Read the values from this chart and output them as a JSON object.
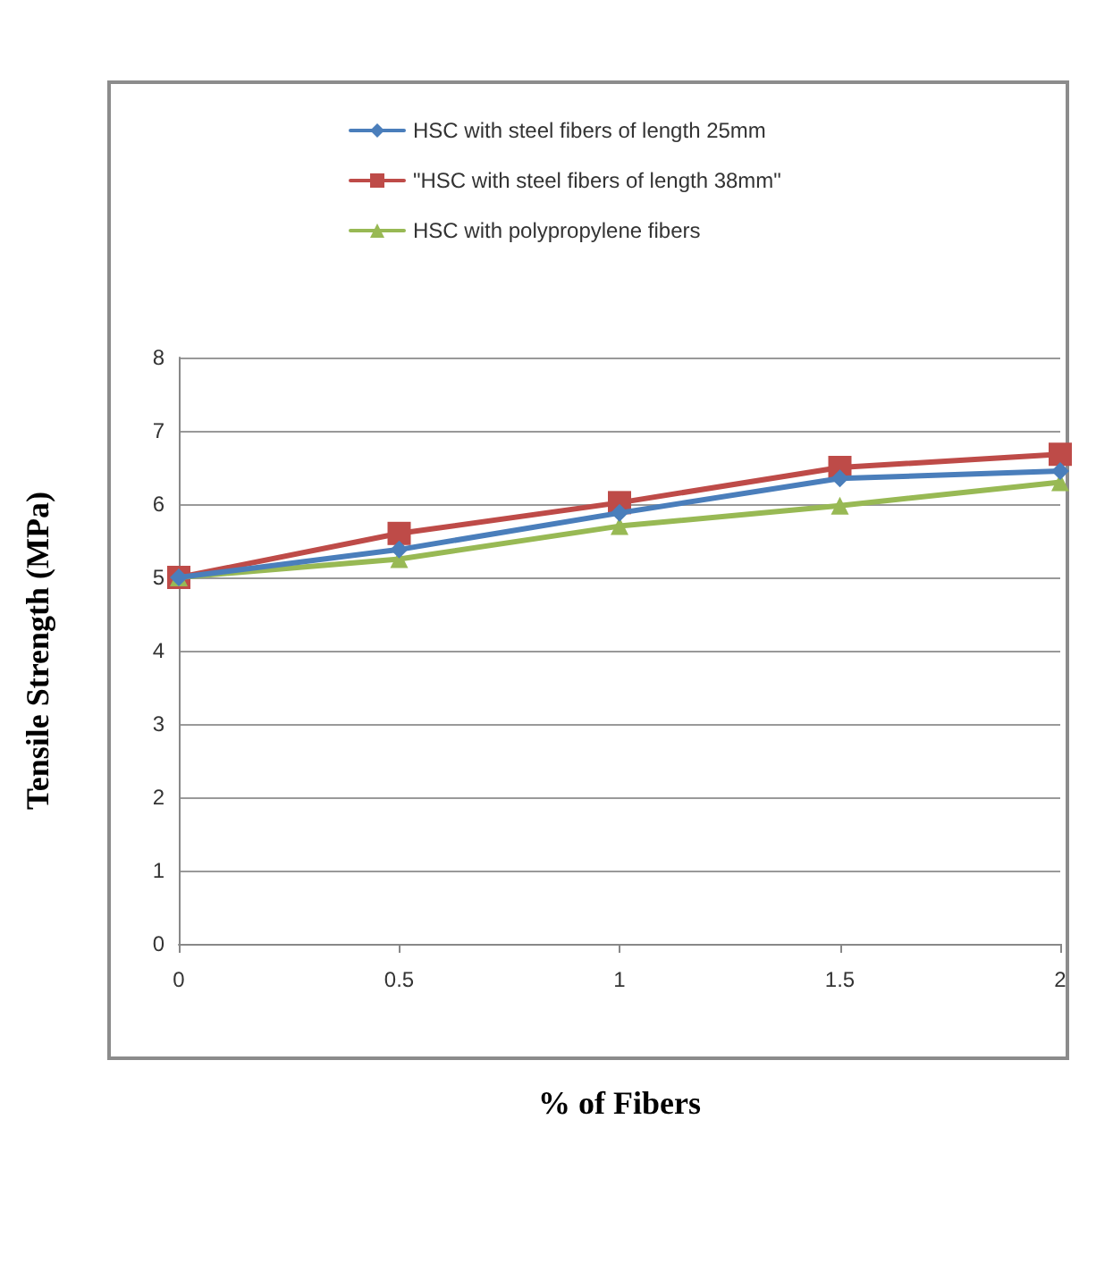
{
  "chart_data": {
    "type": "line",
    "xlabel": "% of Fibers",
    "ylabel": "Tensile Strength (MPa)",
    "x": [
      0,
      0.5,
      1,
      1.5,
      2
    ],
    "xlim": [
      0,
      2
    ],
    "xticks": [
      0,
      0.5,
      1,
      1.5,
      2
    ],
    "ylim": [
      0,
      8
    ],
    "yticks": [
      0,
      1,
      2,
      3,
      4,
      5,
      6,
      7,
      8
    ],
    "series": [
      {
        "name": "HSC with steel fibers of length 25mm",
        "color": "#4a7ebb",
        "marker": "diamond",
        "values": [
          5,
          5.38,
          5.88,
          6.35,
          6.45
        ]
      },
      {
        "name": "\"HSC with steel fibers of length 38mm\"",
        "color": "#be4b48",
        "marker": "square",
        "values": [
          5,
          5.6,
          6.02,
          6.5,
          6.68
        ]
      },
      {
        "name": "HSC with polypropylene fibers",
        "color": "#98b954",
        "marker": "triangle",
        "values": [
          5,
          5.25,
          5.7,
          5.98,
          6.3
        ]
      }
    ],
    "grid": "y",
    "legend": "top",
    "line_style": "solid"
  }
}
